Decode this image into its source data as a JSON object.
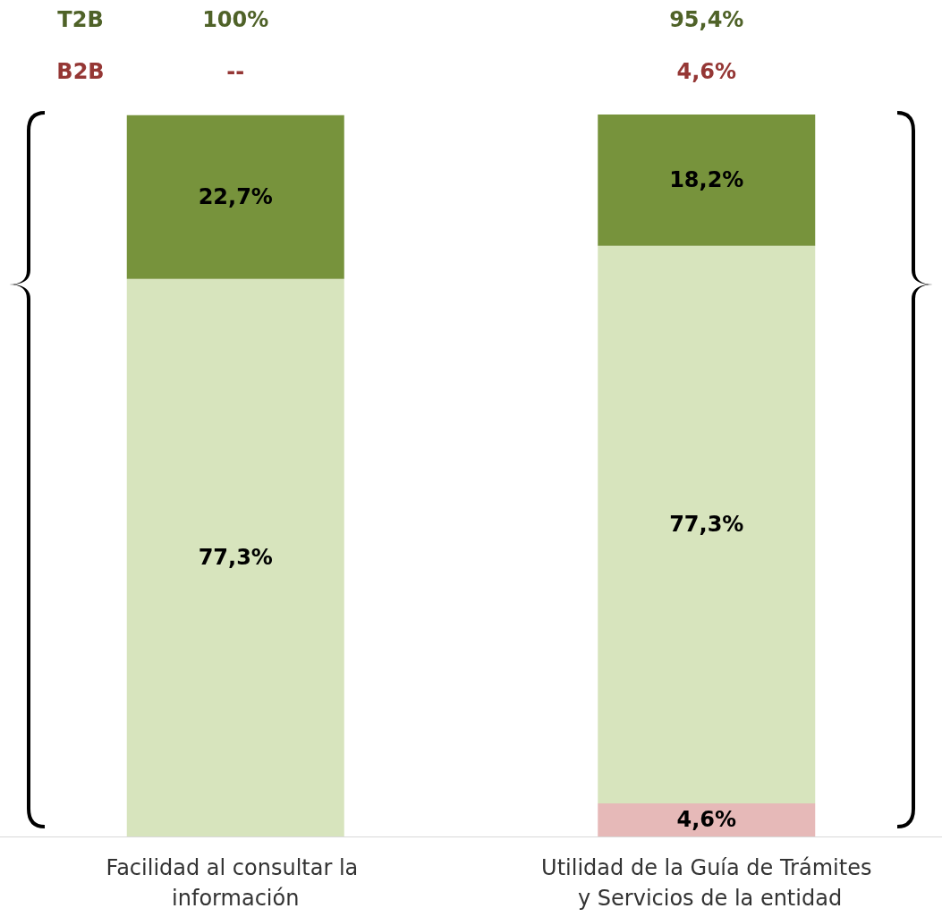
{
  "chart_data": {
    "type": "bar",
    "stacked": true,
    "categories": [
      "Facilidad al consultar la información",
      "Utilidad de la Guía de Trámites y Servicios de la entidad"
    ],
    "series": [
      {
        "color": "#e6b9b8",
        "values": [
          null,
          4.6
        ],
        "value_labels": [
          null,
          "4,6%"
        ]
      },
      {
        "color": "#d7e4bd",
        "values": [
          77.3,
          77.3
        ],
        "value_labels": [
          "77,3%",
          "77,3%"
        ]
      },
      {
        "color": "#77933c",
        "values": [
          22.7,
          18.2
        ],
        "value_labels": [
          "22,7%",
          "18,2%"
        ]
      }
    ],
    "annotations": [
      "T2B",
      "100%",
      "95,4%",
      "B2B",
      "--",
      "4,6%"
    ]
  }
}
